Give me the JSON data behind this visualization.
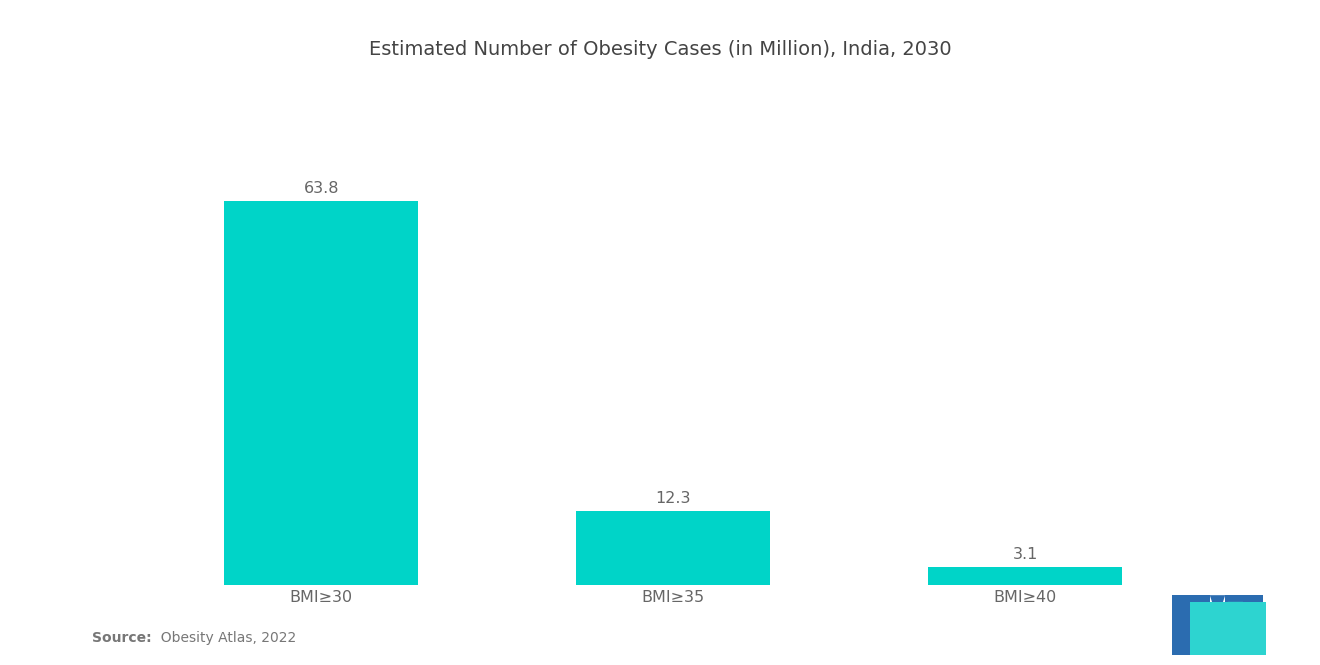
{
  "title": "Estimated Number of Obesity Cases (in Million), India, 2030",
  "categories": [
    "BMI≥30",
    "BMI≥35",
    "BMI≥40"
  ],
  "values": [
    63.8,
    12.3,
    3.1
  ],
  "bar_color": "#00D4C8",
  "background_color": "#ffffff",
  "title_fontsize": 14,
  "label_fontsize": 11.5,
  "value_fontsize": 11.5,
  "source_bold": "Source:",
  "source_normal": "  Obesity Atlas, 2022",
  "ylim": [
    0,
    75
  ],
  "bar_width": 0.55,
  "logo_dark_blue": "#2B6CB0",
  "logo_teal": "#2DD4D0"
}
